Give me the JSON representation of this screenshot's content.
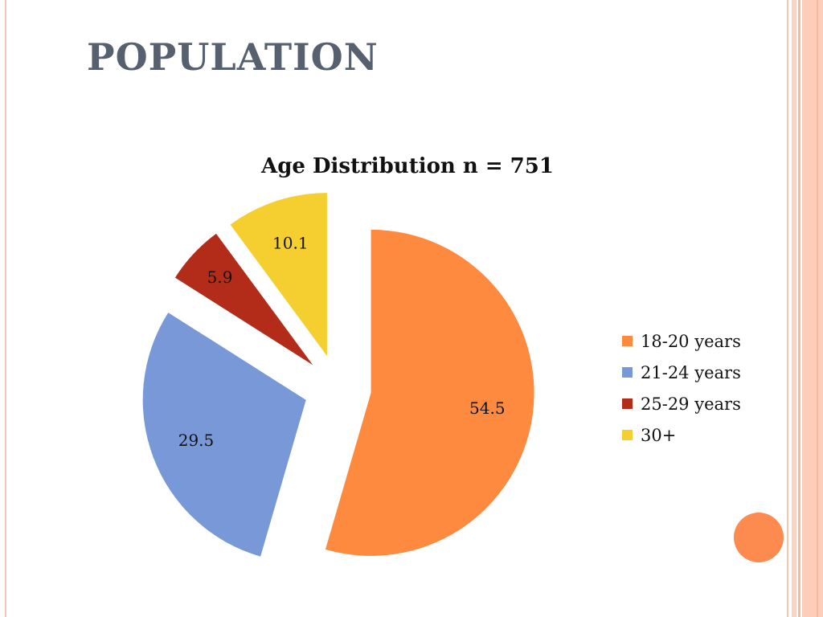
{
  "slide": {
    "title": "POPULATION"
  },
  "chart_data": {
    "type": "pie",
    "title": "Age Distribution n = 751",
    "categories": [
      "18-20 years",
      "21-24 years",
      "25-29 years",
      "30+"
    ],
    "values": [
      54.5,
      29.5,
      5.9,
      10.1
    ],
    "colors": [
      "#fd8a3e",
      "#7898d8",
      "#b32c1a",
      "#f4cf2f"
    ],
    "exploded": true,
    "legend_placement": "right"
  },
  "decoration": {
    "accent_circle_color": "#fd8a4e"
  }
}
